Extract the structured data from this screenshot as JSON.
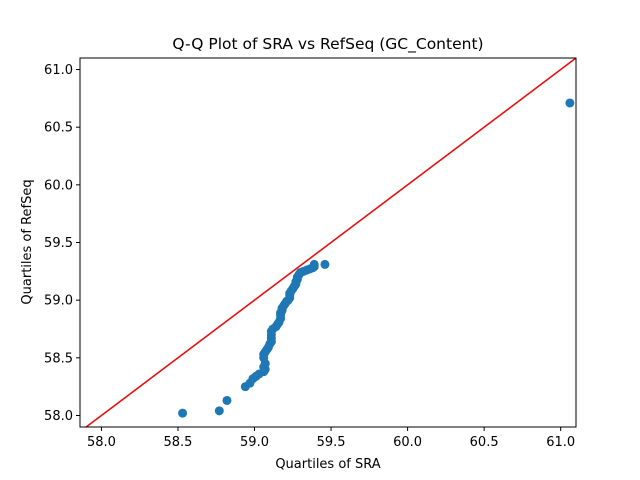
{
  "chart_data": {
    "type": "scatter",
    "title": "Q-Q Plot of SRA vs RefSeq (GC_Content)",
    "xlabel": "Quartiles of SRA",
    "ylabel": "Quartiles of RefSeq",
    "xlim": [
      57.86,
      61.1
    ],
    "ylim": [
      57.9,
      61.1
    ],
    "xticks": [
      "58.0",
      "58.5",
      "59.0",
      "59.5",
      "60.0",
      "60.5",
      "61.0"
    ],
    "yticks": [
      "58.0",
      "58.5",
      "59.0",
      "59.5",
      "60.0",
      "60.5",
      "61.0"
    ],
    "grid": false,
    "reference_line": {
      "from": [
        57.86,
        57.86
      ],
      "to": [
        61.1,
        61.1
      ],
      "color": "#e8110f"
    },
    "point_color": "#1f77b4",
    "series": [
      {
        "points": [
          [
            58.53,
            58.02
          ],
          [
            58.77,
            58.04
          ],
          [
            58.82,
            58.13
          ],
          [
            58.94,
            58.25
          ],
          [
            58.97,
            58.28
          ],
          [
            58.99,
            58.32
          ],
          [
            59.01,
            58.34
          ],
          [
            59.03,
            58.36
          ],
          [
            59.06,
            58.38
          ],
          [
            59.07,
            58.4
          ],
          [
            59.06,
            58.42
          ],
          [
            59.07,
            58.45
          ],
          [
            59.06,
            58.5
          ],
          [
            59.06,
            58.53
          ],
          [
            59.07,
            58.55
          ],
          [
            59.08,
            58.57
          ],
          [
            59.09,
            58.59
          ],
          [
            59.1,
            58.62
          ],
          [
            59.11,
            58.64
          ],
          [
            59.11,
            58.67
          ],
          [
            59.11,
            58.7
          ],
          [
            59.11,
            58.73
          ],
          [
            59.12,
            58.75
          ],
          [
            59.14,
            58.77
          ],
          [
            59.15,
            58.79
          ],
          [
            59.16,
            58.81
          ],
          [
            59.17,
            58.84
          ],
          [
            59.17,
            58.87
          ],
          [
            59.17,
            58.89
          ],
          [
            59.18,
            58.91
          ],
          [
            59.18,
            58.93
          ],
          [
            59.19,
            58.95
          ],
          [
            59.2,
            58.97
          ],
          [
            59.21,
            58.99
          ],
          [
            59.22,
            59.0
          ],
          [
            59.23,
            59.02
          ],
          [
            59.23,
            59.04
          ],
          [
            59.23,
            59.06
          ],
          [
            59.24,
            59.08
          ],
          [
            59.25,
            59.1
          ],
          [
            59.26,
            59.12
          ],
          [
            59.27,
            59.14
          ],
          [
            59.27,
            59.16
          ],
          [
            59.28,
            59.18
          ],
          [
            59.28,
            59.2
          ],
          [
            59.29,
            59.22
          ],
          [
            59.3,
            59.24
          ],
          [
            59.32,
            59.25
          ],
          [
            59.34,
            59.26
          ],
          [
            59.36,
            59.27
          ],
          [
            59.38,
            59.28
          ],
          [
            59.39,
            59.29
          ],
          [
            59.39,
            59.31
          ],
          [
            59.46,
            59.31
          ],
          [
            61.06,
            60.71
          ]
        ]
      }
    ]
  }
}
